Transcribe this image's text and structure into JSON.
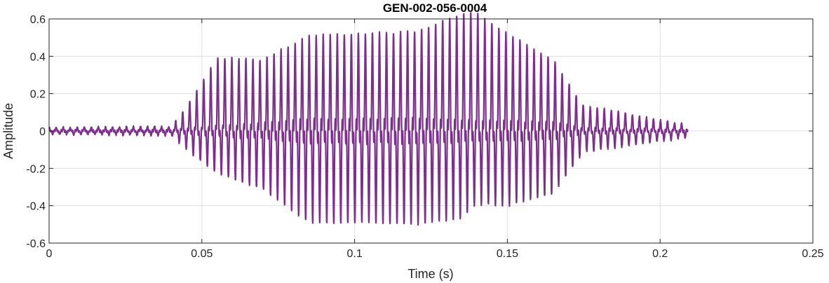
{
  "chart_data": {
    "type": "line",
    "title": "GEN-002-056-0004",
    "xlabel": "Time (s)",
    "ylabel": "Amplitude",
    "xlim": [
      0,
      0.25
    ],
    "ylim": [
      -0.6,
      0.6
    ],
    "xticks": [
      0,
      0.05,
      0.1,
      0.15,
      0.2,
      0.25
    ],
    "xtick_labels": [
      "0",
      "0.05",
      "0.1",
      "0.15",
      "0.2",
      "0.25"
    ],
    "yticks": [
      -0.6,
      -0.4,
      -0.2,
      0,
      0.2,
      0.4,
      0.6
    ],
    "ytick_labels": [
      "-0.6",
      "-0.4",
      "-0.2",
      "0",
      "0.2",
      "0.4",
      "0.6"
    ],
    "grid": true,
    "series": [
      {
        "color": "#7e2f8e",
        "x_range": [
          0,
          0.209
        ],
        "envelope": {
          "t": [
            0,
            0.04,
            0.045,
            0.055,
            0.07,
            0.085,
            0.1,
            0.12,
            0.135,
            0.14,
            0.15,
            0.165,
            0.175,
            0.185,
            0.2,
            0.209
          ],
          "peak_max": [
            0.015,
            0.02,
            0.12,
            0.37,
            0.35,
            0.46,
            0.47,
            0.48,
            0.58,
            0.59,
            0.48,
            0.35,
            0.12,
            0.1,
            0.05,
            0.03
          ],
          "peak_min": [
            -0.015,
            -0.02,
            -0.09,
            -0.2,
            -0.28,
            -0.44,
            -0.44,
            -0.45,
            -0.42,
            -0.35,
            -0.36,
            -0.3,
            -0.1,
            -0.08,
            -0.05,
            -0.03
          ]
        },
        "period_s": 0.0023
      }
    ]
  }
}
